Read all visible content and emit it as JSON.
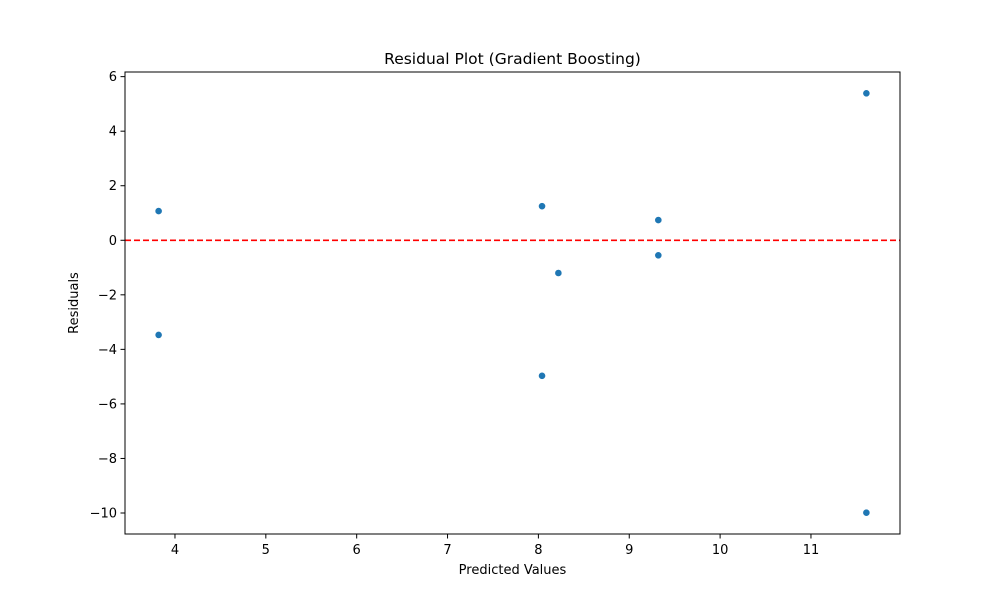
{
  "chart_data": {
    "type": "scatter",
    "title": "Residual Plot (Gradient Boosting)",
    "xlabel": "Predicted Values",
    "ylabel": "Residuals",
    "xlim": [
      3.45,
      11.98
    ],
    "ylim": [
      -10.77,
      6.17
    ],
    "xticks": [
      4,
      5,
      6,
      7,
      8,
      9,
      10,
      11
    ],
    "xtick_labels": [
      "4",
      "5",
      "6",
      "7",
      "8",
      "9",
      "10",
      "11"
    ],
    "yticks": [
      -10,
      -8,
      -6,
      -4,
      -2,
      0,
      2,
      4,
      6
    ],
    "ytick_labels": [
      "−10",
      "−8",
      "−6",
      "−4",
      "−2",
      "0",
      "2",
      "4",
      "6"
    ],
    "series": [
      {
        "x": [
          3.82,
          3.82,
          8.04,
          8.04,
          8.22,
          9.32,
          9.32,
          11.61,
          11.61
        ],
        "y": [
          1.07,
          -3.47,
          1.25,
          -4.97,
          -1.2,
          0.74,
          -0.55,
          5.39,
          -9.99
        ],
        "color": "#1f77b4"
      }
    ],
    "reference_line": {
      "y": 0,
      "color": "#ff0000",
      "style": "dashed"
    },
    "grid": false,
    "legend": "none"
  }
}
